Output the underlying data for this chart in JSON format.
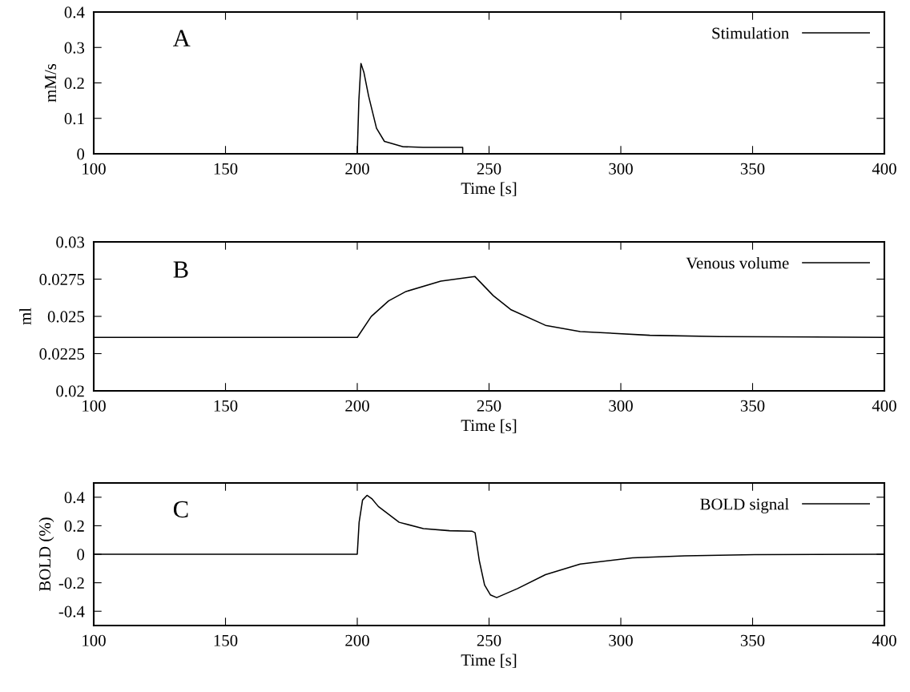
{
  "chart_data": [
    {
      "type": "line",
      "annotations": [
        "A"
      ],
      "xlabel": "Time [s]",
      "ylabel": "mM/s",
      "xlim": [
        100,
        400
      ],
      "xticks": [
        100,
        150,
        200,
        250,
        300,
        350,
        400
      ],
      "ylim": [
        0,
        0.4
      ],
      "yticks": [
        0,
        0.1,
        0.2,
        0.3,
        0.4
      ],
      "legend": "top right",
      "grid": false,
      "line_style": "solid",
      "marker": "none",
      "series": [
        {
          "name": "Stimulation",
          "color": "#000000",
          "x": [
            100,
            200,
            200.6,
            201.4,
            202.5,
            204.3,
            207.3,
            210.3,
            217.4,
            225,
            240,
            240,
            400
          ],
          "values": [
            0,
            0,
            0.15,
            0.255,
            0.23,
            0.163,
            0.072,
            0.035,
            0.02,
            0.018,
            0.018,
            0,
            0
          ]
        }
      ]
    },
    {
      "type": "line",
      "annotations": [
        "B"
      ],
      "xlabel": "Time [s]",
      "ylabel": "ml",
      "xlim": [
        100,
        400
      ],
      "xticks": [
        100,
        150,
        200,
        250,
        300,
        350,
        400
      ],
      "ylim": [
        0.02,
        0.03
      ],
      "yticks": [
        0.02,
        0.0225,
        0.025,
        0.0275,
        0.03
      ],
      "legend": "top right",
      "grid": false,
      "line_style": "solid",
      "marker": "none",
      "series": [
        {
          "name": "Venous volume",
          "color": "#000000",
          "x": [
            100,
            200,
            205.3,
            211.9,
            218.5,
            231.7,
            244.6,
            251.6,
            258.2,
            271.4,
            284.6,
            311,
            337.5,
            400
          ],
          "values": [
            0.02359,
            0.02359,
            0.02499,
            0.02604,
            0.02667,
            0.02737,
            0.02768,
            0.02639,
            0.02546,
            0.0244,
            0.02398,
            0.02373,
            0.02364,
            0.02359
          ]
        }
      ]
    },
    {
      "type": "line",
      "annotations": [
        "C"
      ],
      "xlabel": "Time [s]",
      "ylabel": "BOLD (%)",
      "xlim": [
        100,
        400
      ],
      "xticks": [
        100,
        150,
        200,
        250,
        300,
        350,
        400
      ],
      "ylim": [
        -0.5,
        0.5
      ],
      "yticks": [
        {
          "value": -0.4,
          "label": "-0.4"
        },
        {
          "value": -0.2,
          "label": "-0.2"
        },
        0,
        0.2,
        0.4
      ],
      "legend": "top right",
      "grid": false,
      "line_style": "solid",
      "marker": "none",
      "series": [
        {
          "name": "BOLD signal",
          "color": "#000000",
          "x": [
            100,
            200,
            200.7,
            202,
            203.7,
            205.5,
            208,
            215.9,
            225.1,
            235,
            243.6,
            244.7,
            246.3,
            248.3,
            250.5,
            252.9,
            260.8,
            271.4,
            284.6,
            304.4,
            324.3,
            350.7,
            400
          ],
          "values": [
            0,
            0,
            0.224,
            0.38,
            0.413,
            0.39,
            0.335,
            0.224,
            0.18,
            0.165,
            0.161,
            0.151,
            -0.045,
            -0.216,
            -0.285,
            -0.304,
            -0.241,
            -0.143,
            -0.069,
            -0.025,
            -0.011,
            -0.003,
            0
          ]
        }
      ]
    }
  ]
}
